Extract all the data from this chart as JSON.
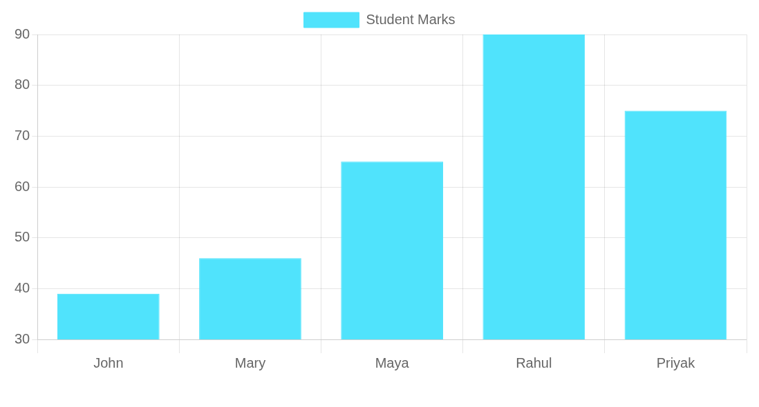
{
  "chart_data": {
    "type": "bar",
    "categories": [
      "John",
      "Mary",
      "Maya",
      "Rahul",
      "Priyak"
    ],
    "series": [
      {
        "name": "Student Marks",
        "color": "#50e3fc",
        "values": [
          39,
          46,
          65,
          90,
          75
        ]
      }
    ],
    "ylim": [
      30,
      90
    ],
    "yticks": [
      30,
      40,
      50,
      60,
      70,
      80,
      90
    ],
    "grid": true,
    "legend": "top"
  }
}
